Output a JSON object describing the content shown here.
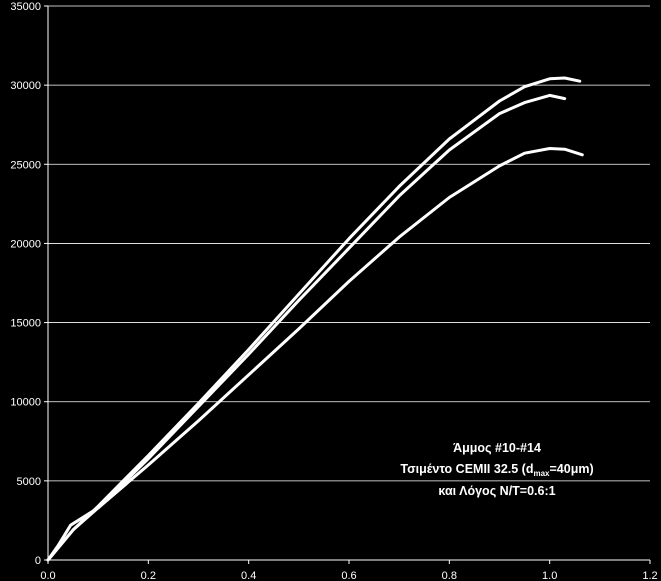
{
  "chart_data": {
    "type": "line",
    "xlim": [
      0,
      1.2
    ],
    "ylim": [
      0,
      35000
    ],
    "x_ticks": [
      "0.0",
      "0.2",
      "0.4",
      "0.6",
      "0.8",
      "1.0",
      "1.2"
    ],
    "y_ticks": [
      "0",
      "5000",
      "10000",
      "15000",
      "20000",
      "25000",
      "30000",
      "35000"
    ],
    "grid": "horizontal",
    "background": "#000000",
    "line_color": "#ffffff",
    "series": [
      {
        "x": [
          0,
          0.05,
          0.1,
          0.2,
          0.3,
          0.4,
          0.5,
          0.6,
          0.7,
          0.8,
          0.9,
          0.95,
          1.0,
          1.03,
          1.06
        ],
        "y": [
          0,
          1900,
          3400,
          6600,
          9900,
          13300,
          16800,
          20300,
          23600,
          26600,
          29000,
          29900,
          30400,
          30450,
          30250
        ]
      },
      {
        "x": [
          0,
          0.05,
          0.1,
          0.2,
          0.3,
          0.4,
          0.5,
          0.6,
          0.7,
          0.8,
          0.9,
          0.95,
          1.0,
          1.03
        ],
        "y": [
          0,
          1900,
          3300,
          6400,
          9700,
          13000,
          16400,
          19700,
          23000,
          25900,
          28200,
          28900,
          29350,
          29150
        ]
      },
      {
        "x": [
          0,
          0.02,
          0.045,
          0.1,
          0.2,
          0.3,
          0.4,
          0.5,
          0.6,
          0.7,
          0.8,
          0.9,
          0.95,
          1.0,
          1.03,
          1.065
        ],
        "y": [
          0,
          900,
          2200,
          3300,
          6000,
          8800,
          11700,
          14600,
          17600,
          20400,
          22900,
          24900,
          25700,
          26000,
          25950,
          25600
        ]
      }
    ],
    "annotation": {
      "line1": "Άμμος #10-#14",
      "line2_before": "Τσιμέντο CEMII 32.5 (d",
      "line2_sub": "max",
      "line2_after": "=40μm)",
      "line3": "και Λόγος Ν/Τ=0.6:1"
    }
  }
}
